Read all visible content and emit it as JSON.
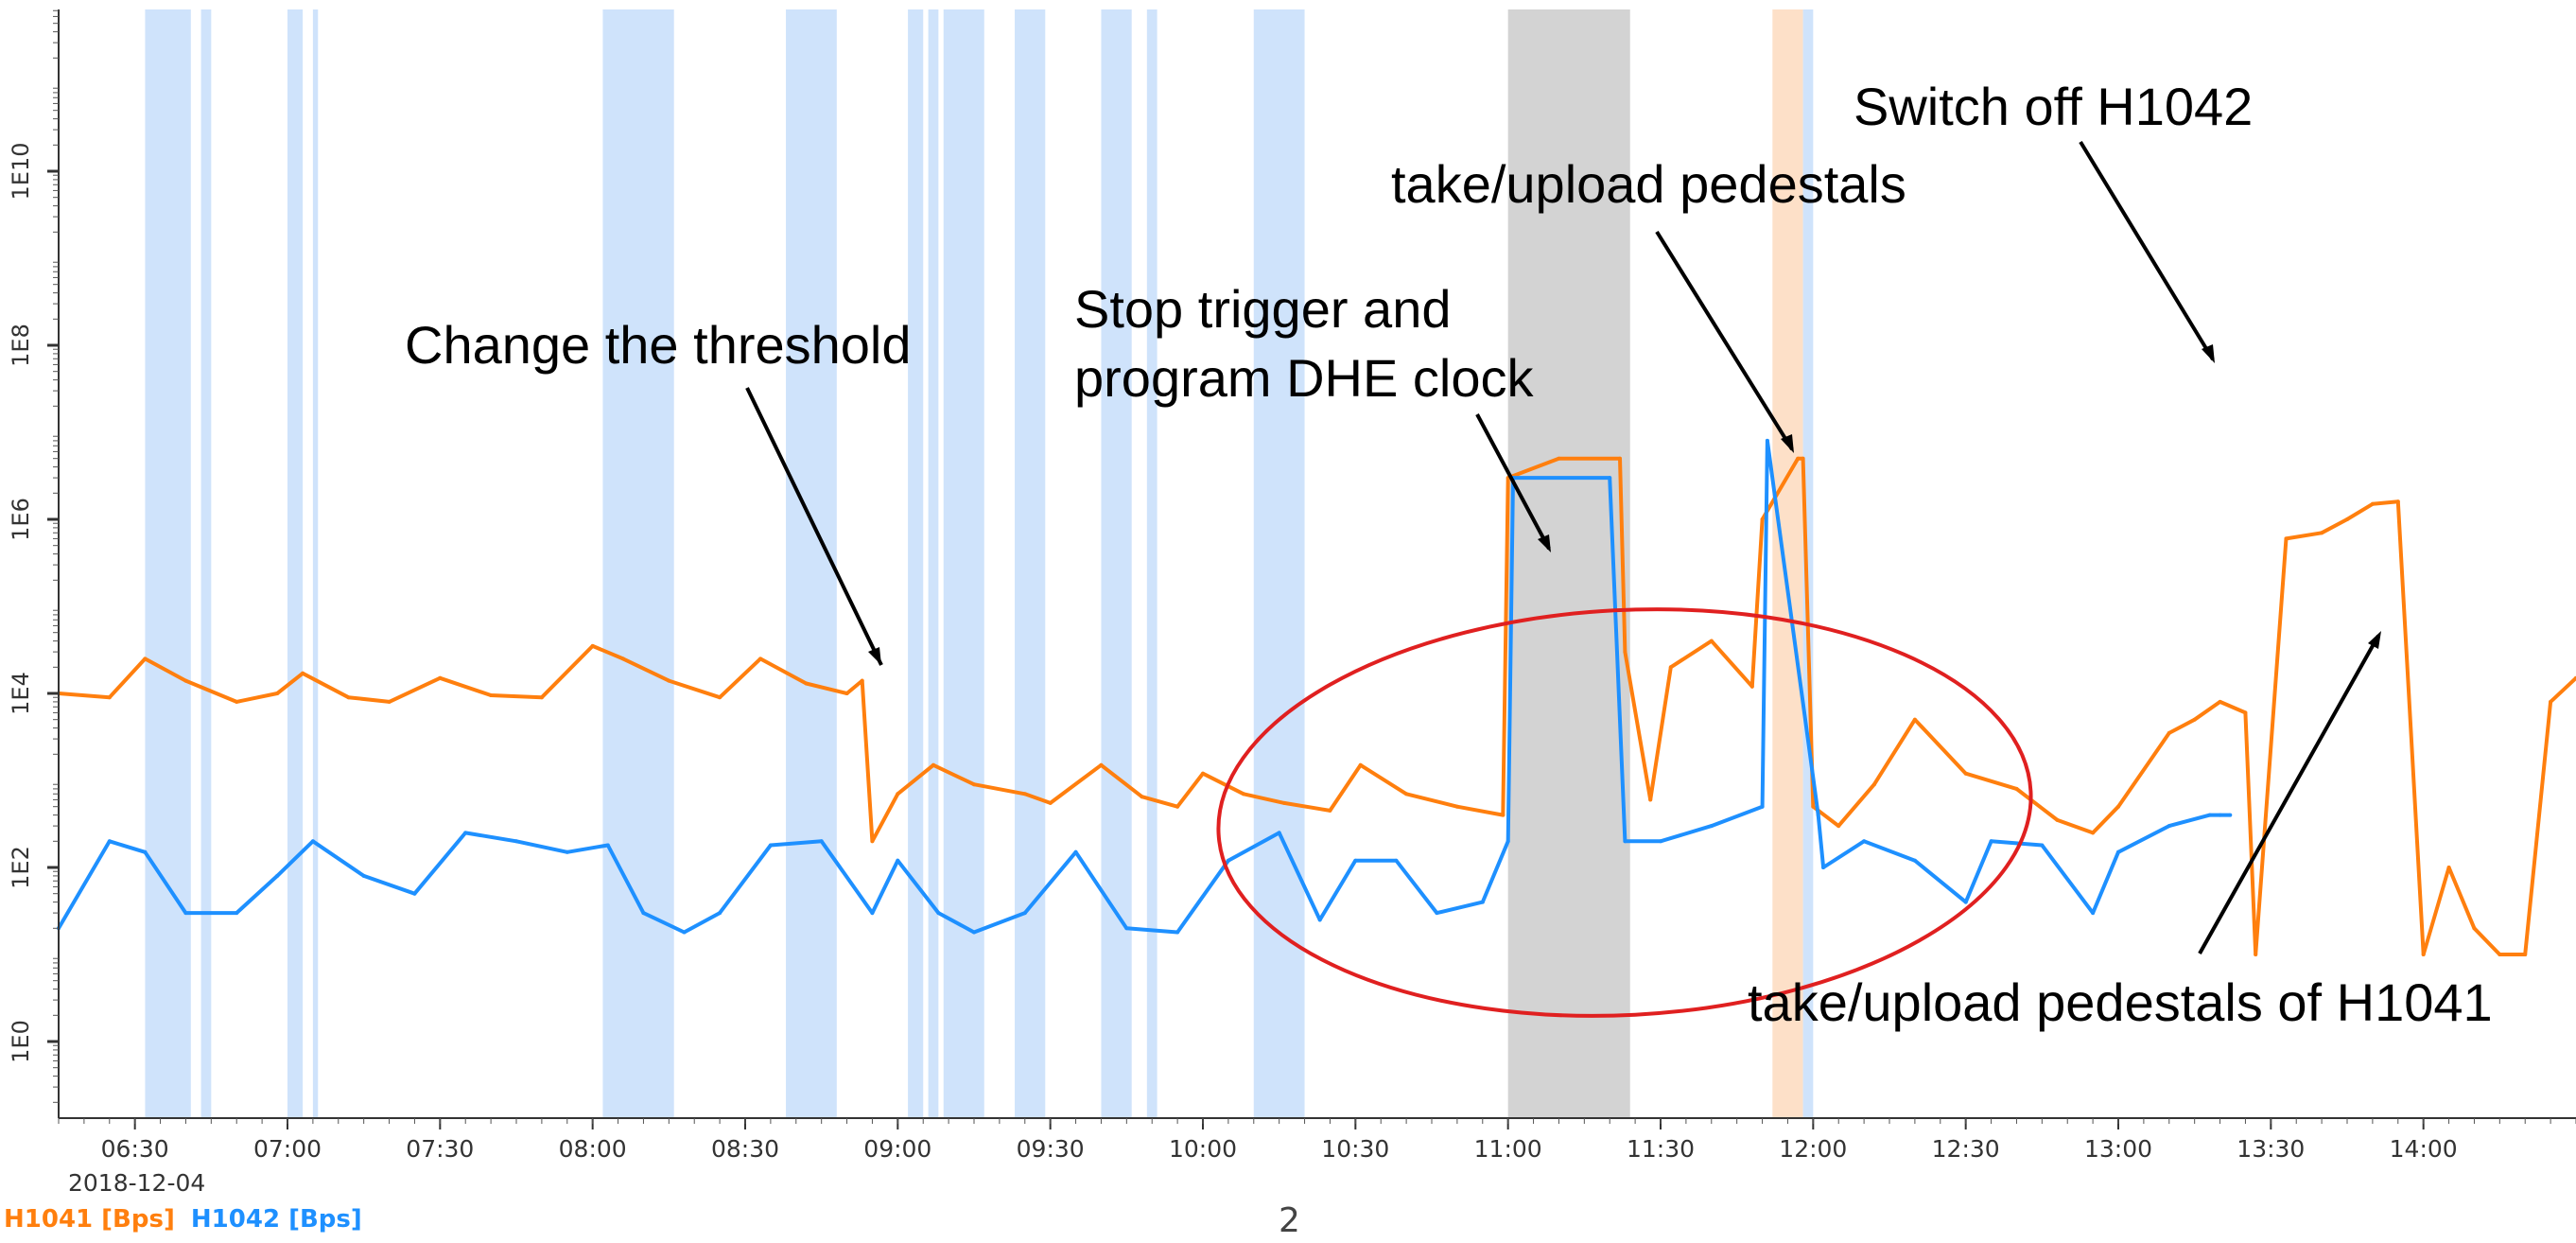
{
  "chart_data": {
    "type": "line",
    "date": "2018-12-04",
    "y_scale": "log",
    "ylim": [
      0.1,
      1000000000000.0
    ],
    "y_ticks": [
      {
        "value": 1,
        "label": "1E0"
      },
      {
        "value": 100,
        "label": "1E2"
      },
      {
        "value": 10000,
        "label": "1E4"
      },
      {
        "value": 1000000,
        "label": "1E6"
      },
      {
        "value": 100000000,
        "label": "1E8"
      },
      {
        "value": 10000000000,
        "label": "1E10"
      }
    ],
    "x_range": [
      "06:15",
      "14:30"
    ],
    "x_ticks": [
      "06:30",
      "07:00",
      "07:30",
      "08:00",
      "08:30",
      "09:00",
      "09:30",
      "10:00",
      "10:30",
      "11:00",
      "11:30",
      "12:00",
      "12:30",
      "13:00",
      "13:30",
      "14:00"
    ],
    "series": [
      {
        "name": "H1041 [Bps]",
        "color": "#ff7f0e",
        "x": [
          "06:15",
          "06:25",
          "06:32",
          "06:40",
          "06:50",
          "06:58",
          "07:03",
          "07:12",
          "07:20",
          "07:30",
          "07:40",
          "07:50",
          "08:00",
          "08:06",
          "08:15",
          "08:25",
          "08:33",
          "08:42",
          "08:50",
          "08:53",
          "08:55",
          "09:00",
          "09:07",
          "09:15",
          "09:25",
          "09:30",
          "09:40",
          "09:48",
          "09:55",
          "10:00",
          "10:08",
          "10:16",
          "10:25",
          "10:31",
          "10:40",
          "10:50",
          "10:59",
          "11:00",
          "11:10",
          "11:22",
          "11:23",
          "11:28",
          "11:32",
          "11:40",
          "11:48",
          "11:50",
          "11:57",
          "11:58",
          "12:00",
          "12:05",
          "12:12",
          "12:20",
          "12:30",
          "12:40",
          "12:48",
          "12:55",
          "13:00",
          "13:10",
          "13:15",
          "13:20",
          "13:25",
          "13:27",
          "13:33",
          "13:40",
          "13:45",
          "13:50",
          "13:55",
          "14:00",
          "14:05",
          "14:10",
          "14:15",
          "14:20",
          "14:25",
          "14:30"
        ],
        "y": [
          10000,
          9000,
          25000,
          14000,
          8000,
          10000,
          17000,
          9000,
          8000,
          15000,
          9500,
          9000,
          35000,
          25000,
          14000,
          9000,
          25000,
          13000,
          10000,
          14000,
          200,
          700,
          1500,
          900,
          700,
          550,
          1500,
          650,
          500,
          1200,
          700,
          550,
          450,
          1500,
          700,
          500,
          400,
          3000000,
          5000000,
          5000000,
          30000,
          600,
          20000,
          40000,
          12000,
          1000000,
          5000000,
          5000000,
          500,
          300,
          900,
          5000,
          1200,
          800,
          350,
          250,
          500,
          3500,
          5000,
          8000,
          6000,
          10,
          600000,
          700000,
          1000000,
          1500000,
          1600000,
          10,
          100,
          20,
          10,
          10,
          8000,
          15000
        ]
      },
      {
        "name": "H1042 [Bps]",
        "color": "#1e90ff",
        "x": [
          "06:15",
          "06:25",
          "06:32",
          "06:40",
          "06:50",
          "06:58",
          "07:05",
          "07:15",
          "07:25",
          "07:35",
          "07:45",
          "07:55",
          "08:03",
          "08:10",
          "08:18",
          "08:25",
          "08:35",
          "08:45",
          "08:55",
          "09:00",
          "09:08",
          "09:15",
          "09:25",
          "09:35",
          "09:45",
          "09:55",
          "10:05",
          "10:15",
          "10:23",
          "10:30",
          "10:38",
          "10:46",
          "10:55",
          "11:00",
          "11:01",
          "11:20",
          "11:23",
          "11:30",
          "11:40",
          "11:50",
          "11:51",
          "12:01",
          "12:02",
          "12:10",
          "12:20",
          "12:30",
          "12:35",
          "12:45",
          "12:55",
          "13:00",
          "13:10",
          "13:18",
          "13:20",
          "13:22"
        ],
        "y": [
          20,
          200,
          150,
          30,
          30,
          80,
          200,
          80,
          50,
          250,
          200,
          150,
          180,
          30,
          18,
          30,
          180,
          200,
          30,
          120,
          30,
          18,
          30,
          150,
          20,
          18,
          120,
          250,
          25,
          120,
          120,
          30,
          40,
          200,
          3000000,
          3000000,
          200,
          200,
          300,
          500,
          8000000,
          400,
          100,
          200,
          120,
          40,
          200,
          180,
          30,
          150,
          300,
          400,
          400,
          400
        ]
      }
    ],
    "annotations": [
      {
        "text": "Change the threshold"
      },
      {
        "text": "Stop trigger and"
      },
      {
        "text": "program DHE clock"
      },
      {
        "text": "take/upload pedestals"
      },
      {
        "text": "Switch off H1042"
      },
      {
        "text": "take/upload pedestals of H1041"
      }
    ],
    "shaded_intervals": [
      {
        "start": "06:32",
        "end": "06:41",
        "color": "#cfe3fb"
      },
      {
        "start": "06:43",
        "end": "06:45",
        "color": "#cfe3fb"
      },
      {
        "start": "07:00",
        "end": "07:03",
        "color": "#cfe3fb"
      },
      {
        "start": "07:05",
        "end": "07:06",
        "color": "#cfe3fb"
      },
      {
        "start": "08:02",
        "end": "08:16",
        "color": "#cfe3fb"
      },
      {
        "start": "08:38",
        "end": "08:48",
        "color": "#cfe3fb"
      },
      {
        "start": "09:02",
        "end": "09:05",
        "color": "#cfe3fb"
      },
      {
        "start": "09:06",
        "end": "09:08",
        "color": "#cfe3fb"
      },
      {
        "start": "09:09",
        "end": "09:17",
        "color": "#cfe3fb"
      },
      {
        "start": "09:23",
        "end": "09:29",
        "color": "#cfe3fb"
      },
      {
        "start": "09:40",
        "end": "09:46",
        "color": "#cfe3fb"
      },
      {
        "start": "09:49",
        "end": "09:51",
        "color": "#cfe3fb"
      },
      {
        "start": "10:10",
        "end": "10:20",
        "color": "#cfe3fb"
      },
      {
        "start": "11:00",
        "end": "11:24",
        "color": "#d3d3d3"
      },
      {
        "start": "11:52",
        "end": "11:58",
        "color": "#fde0c8"
      },
      {
        "start": "11:58",
        "end": "12:00",
        "color": "#cfe3fb"
      }
    ]
  },
  "footer": {
    "date_label": "2018-12-04",
    "legend_h1041": "H1041 [Bps]",
    "legend_h1042": "H1042 [Bps]",
    "page_number": "2"
  }
}
